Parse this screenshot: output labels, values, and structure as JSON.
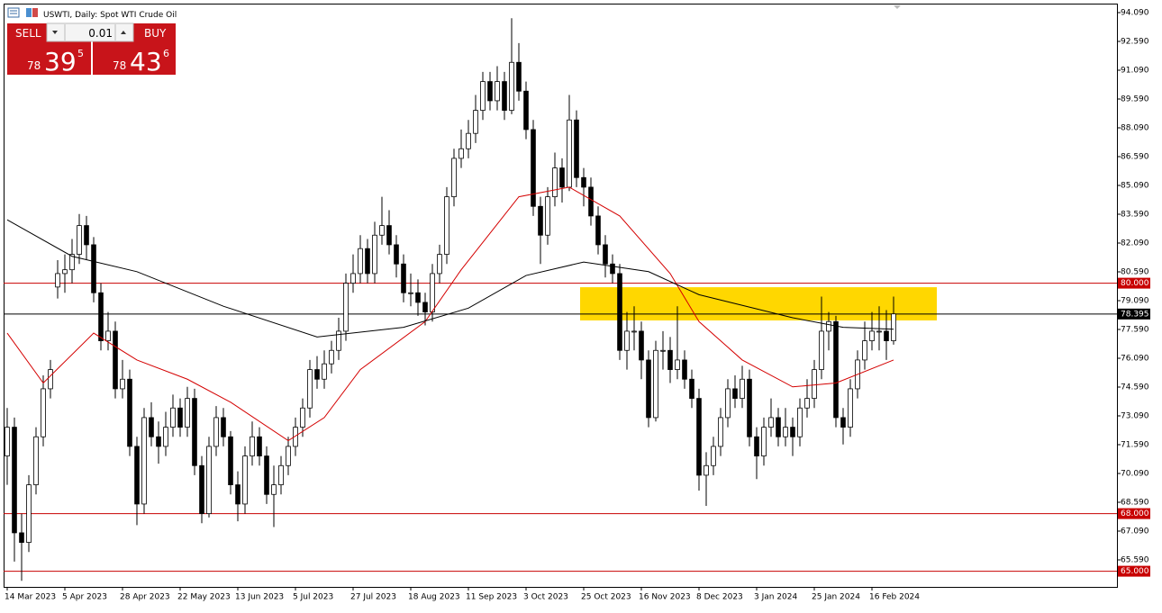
{
  "ui": {
    "symbol_title": "USWTI, Daily:  Spot WTI Crude Oil",
    "sell": "SELL",
    "buy": "BUY",
    "lot": "0.01",
    "bid": {
      "big": "78",
      "main": "39",
      "small": "5"
    },
    "ask": {
      "big": "78",
      "main": "43",
      "small": "6"
    }
  },
  "chart_data": {
    "type": "candlestick",
    "categories": [
      "14 Mar 2023",
      null,
      null,
      null,
      null,
      null,
      null,
      null,
      "5 Apr 2023",
      null,
      null,
      null,
      null,
      null,
      null,
      null,
      "28 Apr 2023",
      null,
      null,
      null,
      null,
      null,
      null,
      null,
      "22 May 2023",
      null,
      null,
      null,
      null,
      null,
      null,
      null,
      "13 Jun 2023",
      null,
      null,
      null,
      null,
      null,
      null,
      null,
      "5 Jul 2023",
      null,
      null,
      null,
      null,
      null,
      null,
      null,
      "27 Jul 2023",
      null,
      null,
      null,
      null,
      null,
      null,
      null,
      "18 Aug 2023",
      null,
      null,
      null,
      null,
      null,
      null,
      null,
      "11 Sep 2023",
      null,
      null,
      null,
      null,
      null,
      null,
      null,
      "3 Oct 2023",
      null,
      null,
      null,
      null,
      null,
      null,
      null,
      "25 Oct 2023",
      null,
      null,
      null,
      null,
      null,
      null,
      null,
      "16 Nov 2023",
      null,
      null,
      null,
      null,
      null,
      null,
      null,
      "8 Dec 2023",
      null,
      null,
      null,
      null,
      null,
      null,
      null,
      "3 Jan 2024",
      null,
      null,
      null,
      null,
      null,
      null,
      null,
      "25 Jan 2024",
      null,
      null,
      null,
      null,
      null,
      null,
      null,
      "16 Feb 2024",
      null,
      null,
      null
    ],
    "open": [
      71,
      72.5,
      67,
      66.5,
      69.5,
      72,
      74.5,
      79.8,
      80.5,
      80.7,
      81.5,
      83,
      82,
      79.5,
      77,
      77.5,
      74.5,
      75,
      71.5,
      68.5,
      73,
      72,
      71.5,
      72.5,
      73.5,
      72.5,
      74,
      70.5,
      68,
      71.5,
      73,
      72,
      69.5,
      68.5,
      71,
      72,
      71,
      69,
      69.5,
      70.5,
      71.5,
      72.5,
      73.5,
      75.5,
      75,
      75.8,
      76.5,
      77.5,
      80,
      80.5,
      81.8,
      80.5,
      82.5,
      83,
      82,
      81,
      79.5,
      79.5,
      79,
      78.5,
      80.5,
      81.5,
      84.5,
      86.5,
      87,
      87.8,
      89,
      90.5,
      89.5,
      90.5,
      89,
      91.5,
      90,
      88,
      84,
      82.5,
      84.5,
      86,
      85,
      88.5,
      85.5,
      85,
      83.5,
      82,
      81,
      80.5,
      76.5,
      77.5,
      77.5,
      76,
      73,
      76.5,
      76.5,
      75.5,
      76,
      75,
      74,
      70,
      70.5,
      71.5,
      73,
      74.5,
      74,
      75,
      72,
      71,
      72.5,
      73,
      72,
      72.5,
      72,
      73.5,
      74,
      75.5,
      77.5,
      78,
      73,
      72.5,
      74.5,
      76,
      77,
      77.5,
      77.5,
      77
    ],
    "high": [
      73.5,
      73,
      68,
      70,
      72.5,
      75.2,
      76,
      81.2,
      81.5,
      82.3,
      83.6,
      83.5,
      82.4,
      80,
      78.5,
      78,
      76,
      75.5,
      72,
      73.5,
      73.8,
      72.8,
      73.3,
      74.2,
      74,
      74.6,
      74.5,
      71,
      72,
      73.6,
      73.5,
      72.3,
      70.2,
      71.5,
      72.8,
      72.5,
      71.5,
      70.5,
      71,
      72,
      73,
      74,
      76,
      76.2,
      76.5,
      77,
      78.2,
      80.5,
      81.5,
      82.5,
      82.3,
      83.2,
      84.5,
      83.8,
      82.5,
      81.5,
      80.5,
      80.2,
      79.5,
      81,
      82,
      85,
      87,
      88,
      88.5,
      89.8,
      91,
      91,
      91.3,
      91,
      93.8,
      92.5,
      90.5,
      88.5,
      84.5,
      85,
      86.8,
      86.5,
      89.8,
      89,
      86,
      85.5,
      84,
      82.5,
      81.5,
      81,
      78.5,
      78.8,
      78,
      76.5,
      77,
      77.5,
      77.2,
      78.8,
      76.5,
      75.5,
      74.5,
      71.2,
      72,
      73.5,
      75,
      75.2,
      75.7,
      75.5,
      72.5,
      73,
      74,
      73.5,
      73.5,
      73,
      74,
      75,
      76,
      79.3,
      78.5,
      78.3,
      73.5,
      75,
      76.5,
      78,
      78.5,
      78.8,
      78.6,
      79.3
    ],
    "low": [
      69.5,
      65.5,
      64.5,
      66,
      69,
      71.5,
      74,
      79.2,
      79.5,
      80,
      81,
      81.2,
      79,
      76.5,
      76.5,
      74,
      74,
      71,
      67.4,
      68,
      71.5,
      70.6,
      71,
      72,
      72,
      72,
      70,
      67.5,
      67.8,
      71,
      71.5,
      69,
      67.6,
      68,
      70.5,
      70.5,
      68.5,
      67.3,
      69,
      70,
      71,
      72,
      73,
      74.5,
      74.5,
      75.3,
      76,
      77,
      79.5,
      80,
      80,
      80,
      82,
      81.5,
      80.3,
      79,
      78.8,
      78.3,
      77.8,
      78,
      80,
      81,
      84,
      86,
      86.5,
      87.3,
      88.5,
      89,
      89,
      88.5,
      88.8,
      89.5,
      87.5,
      83.5,
      81,
      82,
      84,
      84.2,
      84.8,
      85,
      84,
      83,
      81.5,
      80.3,
      80,
      76,
      75.5,
      76.5,
      75,
      72.5,
      72.8,
      75.5,
      74.8,
      75,
      74.5,
      73.5,
      69.2,
      68.4,
      70,
      71,
      72.5,
      73.5,
      73.5,
      71.5,
      69.8,
      70.5,
      72,
      71.5,
      71.5,
      71,
      71.5,
      73,
      73.5,
      75,
      76.5,
      72.5,
      71.6,
      72,
      74,
      75.5,
      76.5,
      76.5,
      76,
      76.8
    ],
    "close": [
      72.5,
      67,
      66.5,
      69.5,
      72,
      74.5,
      75.5,
      80.5,
      80.7,
      81.5,
      83,
      82,
      79.5,
      77,
      77.5,
      74.5,
      75,
      71.5,
      68.5,
      73,
      72,
      71.5,
      72.5,
      73.5,
      72.5,
      74,
      70.5,
      68,
      71.5,
      73,
      72,
      69.5,
      68.5,
      71,
      72,
      71,
      69,
      69.5,
      70.5,
      71.5,
      72.5,
      73.5,
      75.5,
      75,
      75.8,
      76.5,
      77.5,
      80,
      80.5,
      81.8,
      80.5,
      82.5,
      83,
      82,
      81,
      79.5,
      79.5,
      79,
      78.5,
      80.5,
      81.5,
      84.5,
      86.5,
      87,
      87.8,
      89,
      90.5,
      89.5,
      90.5,
      89,
      91.5,
      90,
      88,
      84,
      82.5,
      84.5,
      86,
      85,
      88.5,
      85.5,
      85,
      83.5,
      82,
      81,
      80.5,
      76.5,
      77.5,
      77.5,
      76,
      73,
      76.5,
      76.5,
      75.5,
      76,
      75,
      74,
      70,
      70.5,
      71.5,
      73,
      74.5,
      74,
      75,
      72,
      71,
      72.5,
      73,
      72,
      72.5,
      72,
      73.5,
      74,
      75.5,
      77.5,
      78,
      73,
      72.5,
      74.5,
      76,
      77,
      77.5,
      77.5,
      77,
      78.4
    ],
    "lines": [
      {
        "color": "#d40000",
        "x": [
          0,
          5,
          12,
          18,
          25,
          31,
          39,
          44,
          49,
          58,
          63,
          71,
          78,
          85,
          92,
          96,
          102,
          109,
          115,
          123
        ],
        "values": [
          77.4,
          74.8,
          77.4,
          76.0,
          75.0,
          73.8,
          71.8,
          73.0,
          75.5,
          78.0,
          80.7,
          84.5,
          85.0,
          83.5,
          80.5,
          78.0,
          76.0,
          74.6,
          74.8,
          76.0
        ]
      },
      {
        "color": "#000000",
        "x": [
          0,
          9,
          18,
          30,
          43,
          55,
          64,
          72,
          80,
          89,
          96,
          109,
          116,
          123
        ],
        "values": [
          83.3,
          81.4,
          80.6,
          78.8,
          77.2,
          77.7,
          78.7,
          80.4,
          81.1,
          80.6,
          79.4,
          78.2,
          77.7,
          77.6
        ]
      }
    ],
    "hlines": [
      {
        "value": 80,
        "label": "80.000",
        "color": "#c80000"
      },
      {
        "value": 78.395,
        "label": "78.395",
        "color": "#000000"
      },
      {
        "value": 68,
        "label": "68.000",
        "color": "#c80000"
      },
      {
        "value": 65,
        "label": "65.000",
        "color": "#c80000"
      }
    ],
    "zone": {
      "from": 78.06,
      "to": 79.79,
      "start": 79.5,
      "end": 129,
      "color": "#ffd700"
    },
    "xlim": [
      -0.5,
      154
    ],
    "ylim": [
      64.184,
      94.559
    ],
    "yticks": [
      {
        "value": 94.09,
        "label": "94.090"
      },
      {
        "value": 92.59,
        "label": "92.590"
      },
      {
        "value": 91.09,
        "label": "91.090"
      },
      {
        "value": 89.59,
        "label": "89.590"
      },
      {
        "value": 88.09,
        "label": "88.090"
      },
      {
        "value": 86.59,
        "label": "86.590"
      },
      {
        "value": 85.09,
        "label": "85.090"
      },
      {
        "value": 83.59,
        "label": "83.590"
      },
      {
        "value": 82.09,
        "label": "82.090"
      },
      {
        "value": 80.59,
        "label": "80.590"
      },
      {
        "value": 79.09,
        "label": "79.090"
      },
      {
        "value": 77.59,
        "label": "77.590"
      },
      {
        "value": 76.09,
        "label": "76.090"
      },
      {
        "value": 74.59,
        "label": "74.590"
      },
      {
        "value": 73.09,
        "label": "73.090"
      },
      {
        "value": 71.59,
        "label": "71.590"
      },
      {
        "value": 70.09,
        "label": "70.090"
      },
      {
        "value": 68.59,
        "label": "68.590"
      },
      {
        "value": 67.09,
        "label": "67.090"
      },
      {
        "value": 65.59,
        "label": "65.590"
      }
    ],
    "up_color": "#ffffff",
    "down_color": "#000000"
  }
}
